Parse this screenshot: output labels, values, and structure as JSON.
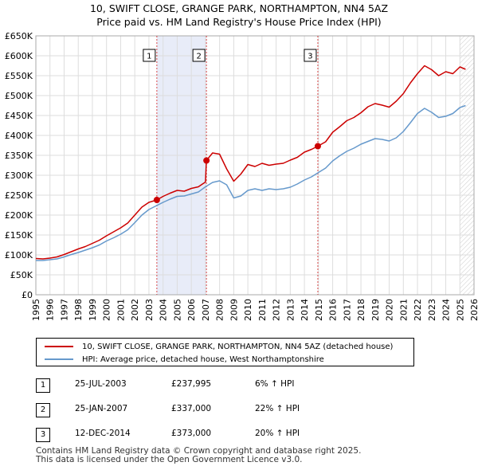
{
  "title_line1": "10, SWIFT CLOSE, GRANGE PARK, NORTHAMPTON, NN4 5AZ",
  "title_line2": "Price paid vs. HM Land Registry's House Price Index (HPI)",
  "colors": {
    "property": "#cc0000",
    "hpi": "#6699cc",
    "grid": "#dddddd",
    "highlight": "#e8ecf8",
    "future": "#f0f0f0"
  },
  "chart_data": {
    "type": "line",
    "title": "10, SWIFT CLOSE, GRANGE PARK, NORTHAMPTON, NN4 5AZ — Price paid vs. HM Land Registry's House Price Index (HPI)",
    "xlabel": "",
    "ylabel": "",
    "xlim": [
      1995,
      2026
    ],
    "ylim": [
      0,
      650000
    ],
    "x_ticks": [
      "1995",
      "1996",
      "1997",
      "1998",
      "1999",
      "2000",
      "2001",
      "2002",
      "2003",
      "2004",
      "2005",
      "2006",
      "2007",
      "2008",
      "2009",
      "2010",
      "2011",
      "2012",
      "2013",
      "2014",
      "2015",
      "2016",
      "2017",
      "2018",
      "2019",
      "2020",
      "2021",
      "2022",
      "2023",
      "2024",
      "2025",
      "2026"
    ],
    "y_ticks": [
      {
        "value": 0,
        "label": "£0"
      },
      {
        "value": 50000,
        "label": "£50K"
      },
      {
        "value": 100000,
        "label": "£100K"
      },
      {
        "value": 150000,
        "label": "£150K"
      },
      {
        "value": 200000,
        "label": "£200K"
      },
      {
        "value": 250000,
        "label": "£250K"
      },
      {
        "value": 300000,
        "label": "£300K"
      },
      {
        "value": 350000,
        "label": "£350K"
      },
      {
        "value": 400000,
        "label": "£400K"
      },
      {
        "value": 450000,
        "label": "£450K"
      },
      {
        "value": 500000,
        "label": "£500K"
      },
      {
        "value": 550000,
        "label": "£550K"
      },
      {
        "value": 600000,
        "label": "£600K"
      },
      {
        "value": 650000,
        "label": "£650K"
      }
    ],
    "highlight_span": [
      2003.56,
      2007.07
    ],
    "future_from": 2025.0,
    "series": [
      {
        "name": "10, SWIFT CLOSE, GRANGE PARK, NORTHAMPTON, NN4 5AZ (detached house)",
        "color": "#cc0000",
        "x": [
          1995.0,
          1995.5,
          1996.0,
          1996.5,
          1997.0,
          1997.5,
          1998.0,
          1998.5,
          1999.0,
          1999.5,
          2000.0,
          2000.5,
          2001.0,
          2001.5,
          2002.0,
          2002.5,
          2003.0,
          2003.56,
          2004.0,
          2004.5,
          2005.0,
          2005.5,
          2006.0,
          2006.5,
          2007.0,
          2007.07,
          2007.5,
          2008.0,
          2008.5,
          2009.0,
          2009.5,
          2010.0,
          2010.5,
          2011.0,
          2011.5,
          2012.0,
          2012.5,
          2013.0,
          2013.5,
          2014.0,
          2014.5,
          2014.95,
          2015.5,
          2016.0,
          2016.5,
          2017.0,
          2017.5,
          2018.0,
          2018.5,
          2019.0,
          2019.5,
          2020.0,
          2020.5,
          2021.0,
          2021.5,
          2022.0,
          2022.5,
          2023.0,
          2023.5,
          2024.0,
          2024.5,
          2025.0,
          2025.4
        ],
        "values": [
          91000,
          90000,
          92000,
          95000,
          101000,
          108000,
          115000,
          121000,
          129000,
          137000,
          148000,
          158000,
          168000,
          180000,
          200000,
          220000,
          232000,
          237995,
          247000,
          255000,
          262000,
          260000,
          267000,
          271000,
          283000,
          337000,
          356000,
          353000,
          316000,
          285000,
          303000,
          327000,
          322000,
          330000,
          325000,
          328000,
          330000,
          338000,
          345000,
          358000,
          365000,
          373000,
          384000,
          408000,
          422000,
          437000,
          445000,
          457000,
          472000,
          480000,
          476000,
          471000,
          486000,
          505000,
          532000,
          555000,
          575000,
          565000,
          550000,
          560000,
          555000,
          572000,
          566000
        ]
      },
      {
        "name": "HPI: Average price, detached house, West Northamptonshire",
        "color": "#6699cc",
        "x": [
          1995.0,
          1995.5,
          1996.0,
          1996.5,
          1997.0,
          1997.5,
          1998.0,
          1998.5,
          1999.0,
          1999.5,
          2000.0,
          2000.5,
          2001.0,
          2001.5,
          2002.0,
          2002.5,
          2003.0,
          2003.5,
          2004.0,
          2004.5,
          2005.0,
          2005.5,
          2006.0,
          2006.5,
          2007.0,
          2007.5,
          2008.0,
          2008.5,
          2009.0,
          2009.5,
          2010.0,
          2010.5,
          2011.0,
          2011.5,
          2012.0,
          2012.5,
          2013.0,
          2013.5,
          2014.0,
          2014.5,
          2015.0,
          2015.5,
          2016.0,
          2016.5,
          2017.0,
          2017.5,
          2018.0,
          2018.5,
          2019.0,
          2019.5,
          2020.0,
          2020.5,
          2021.0,
          2021.5,
          2022.0,
          2022.5,
          2023.0,
          2023.5,
          2024.0,
          2024.5,
          2025.0,
          2025.4
        ],
        "values": [
          86000,
          86000,
          88000,
          90000,
          95000,
          101000,
          106000,
          112000,
          118000,
          125000,
          135000,
          143000,
          152000,
          163000,
          181000,
          200000,
          214000,
          223000,
          232000,
          240000,
          247000,
          248000,
          253000,
          258000,
          271000,
          282000,
          286000,
          276000,
          243000,
          248000,
          262000,
          266000,
          262000,
          266000,
          264000,
          266000,
          270000,
          278000,
          288000,
          296000,
          307000,
          318000,
          336000,
          349000,
          360000,
          368000,
          378000,
          385000,
          392000,
          390000,
          386000,
          394000,
          410000,
          432000,
          455000,
          468000,
          458000,
          445000,
          448000,
          455000,
          470000,
          475000
        ]
      }
    ],
    "sales": [
      {
        "id": "1",
        "x": 2003.56,
        "value": 237995
      },
      {
        "id": "2",
        "x": 2007.07,
        "value": 337000
      },
      {
        "id": "3",
        "x": 2014.95,
        "value": 373000
      }
    ]
  },
  "legend": {
    "property_label": "10, SWIFT CLOSE, GRANGE PARK, NORTHAMPTON, NN4 5AZ (detached house)",
    "hpi_label": "HPI: Average price, detached house, West Northamptonshire"
  },
  "sales_table": [
    {
      "id": "1",
      "date": "25-JUL-2003",
      "price": "£237,995",
      "delta": "6% ↑ HPI"
    },
    {
      "id": "2",
      "date": "25-JAN-2007",
      "price": "£337,000",
      "delta": "22% ↑ HPI"
    },
    {
      "id": "3",
      "date": "12-DEC-2014",
      "price": "£373,000",
      "delta": "20% ↑ HPI"
    }
  ],
  "footer_line1": "Contains HM Land Registry data © Crown copyright and database right 2025.",
  "footer_line2": "This data is licensed under the Open Government Licence v3.0."
}
